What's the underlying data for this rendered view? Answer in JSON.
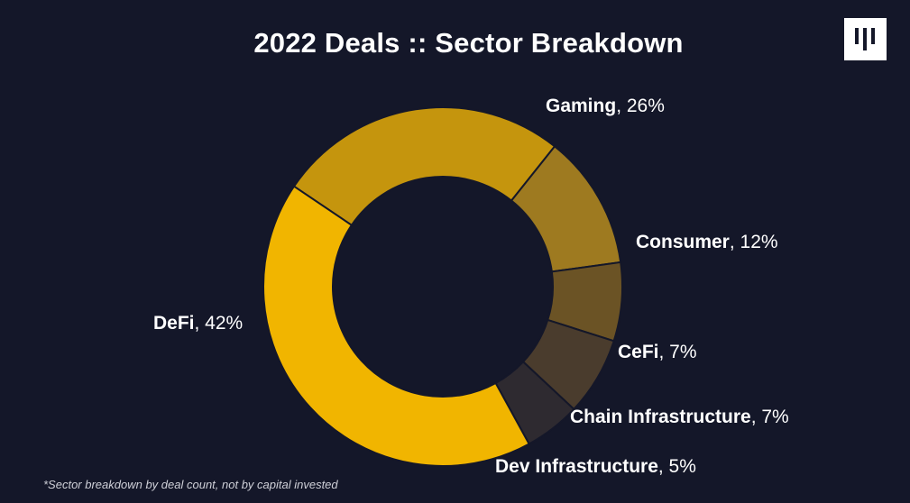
{
  "title": "2022 Deals :: Sector Breakdown",
  "footnote": "*Sector breakdown by deal count, not by capital invested",
  "logo_icon": "columns-logo-icon",
  "colors": {
    "background": "#141729",
    "text": "#ffffff",
    "separator": "#141729"
  },
  "chart_data": {
    "type": "pie",
    "variant": "donut",
    "title": "2022 Deals :: Sector Breakdown",
    "slices": [
      {
        "label": "Gaming",
        "value": 26,
        "value_label": "26%",
        "color": "#C5950D"
      },
      {
        "label": "Consumer",
        "value": 12,
        "value_label": "12%",
        "color": "#9E7A20"
      },
      {
        "label": "CeFi",
        "value": 7,
        "value_label": "7%",
        "color": "#6B5325"
      },
      {
        "label": "Chain Infrastructure",
        "value": 7,
        "value_label": "7%",
        "color": "#4A3C2D"
      },
      {
        "label": "Dev Infrastructure",
        "value": 5,
        "value_label": "5%",
        "color": "#2E2A30"
      },
      {
        "label": "DeFi",
        "value": 42,
        "value_label": "42%",
        "color": "#F1B500"
      }
    ],
    "start_angle_deg": -56,
    "direction": "clockwise",
    "legend": "none"
  }
}
